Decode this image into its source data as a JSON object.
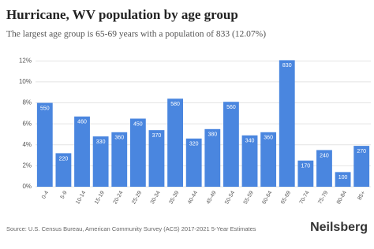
{
  "chart_data": {
    "type": "bar",
    "title": "Hurricane, WV population by age group",
    "subtitle": "The largest age group is 65-69 years with a population of 833 (12.07%)",
    "categories": [
      "0-4",
      "5-9",
      "10-14",
      "15-19",
      "20-24",
      "25-29",
      "30-34",
      "35-39",
      "40-44",
      "45-49",
      "50-54",
      "55-59",
      "60-64",
      "65-69",
      "70-74",
      "75-79",
      "80-84",
      "85+"
    ],
    "values": [
      8.0,
      3.2,
      6.7,
      4.8,
      5.2,
      6.5,
      5.4,
      8.4,
      4.6,
      5.5,
      8.1,
      4.9,
      5.2,
      12.07,
      2.5,
      3.5,
      1.4,
      3.9
    ],
    "data_labels": [
      550,
      220,
      460,
      330,
      360,
      450,
      370,
      580,
      320,
      380,
      560,
      340,
      360,
      830,
      170,
      240,
      100,
      270
    ],
    "color": "#4a86df",
    "ylim": [
      0,
      12.4
    ],
    "yticks": [
      {
        "value": 0,
        "label": "0%"
      },
      {
        "value": 2,
        "label": "2%"
      },
      {
        "value": 4,
        "label": "4%"
      },
      {
        "value": 6,
        "label": "6%"
      },
      {
        "value": 8,
        "label": "8%"
      },
      {
        "value": 10,
        "label": "10%"
      },
      {
        "value": 12,
        "label": "12%"
      }
    ],
    "grid": true,
    "source": "Source: U.S. Census Bureau, American Community Survey (ACS) 2017-2021 5-Year Estimates",
    "brand": "Neilsberg"
  }
}
